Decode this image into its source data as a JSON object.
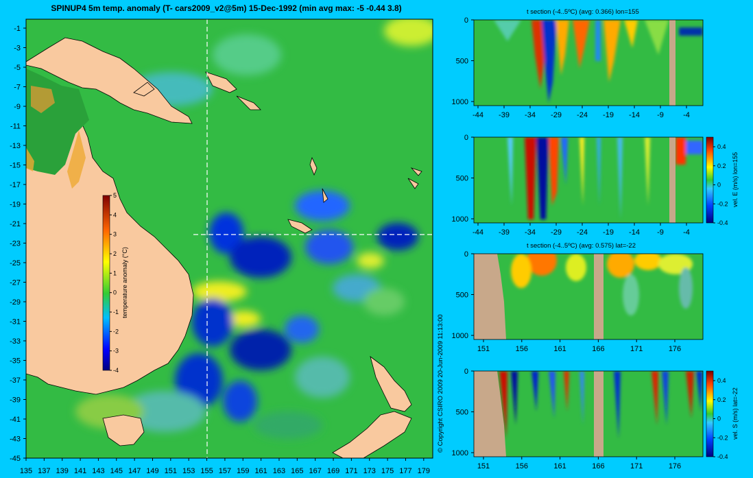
{
  "map": {
    "title": "SPINUP4 5m temp. anomaly (T- cars2009_v2@5m) 15-Dec-1992 (min avg max: -5 -0.44 3.8)",
    "x_ticks": [
      "135",
      "137",
      "139",
      "141",
      "143",
      "145",
      "147",
      "149",
      "151",
      "153",
      "155",
      "157",
      "159",
      "161",
      "163",
      "165",
      "167",
      "169",
      "171",
      "173",
      "175",
      "177",
      "179"
    ],
    "y_ticks": [
      "-1",
      "-3",
      "-5",
      "-7",
      "-9",
      "-11",
      "-13",
      "-15",
      "-17",
      "-19",
      "-21",
      "-23",
      "-25",
      "-27",
      "-29",
      "-31",
      "-33",
      "-35",
      "-37",
      "-39",
      "-41",
      "-43",
      "-45"
    ],
    "colorbar_label": "temperature anomaly (°C)",
    "colorbar_ticks": [
      "5",
      "4",
      "3",
      "2",
      "1",
      "0",
      "-1",
      "-2",
      "-3",
      "-4"
    ],
    "section_lon_line": 155,
    "section_lat_line": -22,
    "colors": {
      "land": "#f9c99f",
      "ocean_mean": "#33bb33",
      "background": "#00ccff"
    }
  },
  "copyright": "© Copyright CSIRO 2009   20-Jun-2009 11:13:00",
  "panels": [
    {
      "title": "t section (-4..5ºC) (avg: 0.366) lon=155",
      "x_ticks": [
        "-44",
        "-39",
        "-34",
        "-29",
        "-24",
        "-19",
        "-14",
        "-9",
        "-4"
      ],
      "y_ticks": [
        "0",
        "500",
        "1000"
      ],
      "colorbar": null
    },
    {
      "title": "",
      "x_ticks": [
        "-44",
        "-39",
        "-34",
        "-29",
        "-24",
        "-19",
        "-14",
        "-9",
        "-4"
      ],
      "y_ticks": [
        "0",
        "500",
        "1000"
      ],
      "colorbar": {
        "label": "vel. E (m/s) lon=155",
        "ticks": [
          "0.4",
          "0.2",
          "0",
          "-0.2",
          "-0.4"
        ]
      }
    },
    {
      "title": "t section (-4..5ºC) (avg: 0.575) lat=-22",
      "x_ticks": [
        "151",
        "156",
        "161",
        "166",
        "171",
        "176"
      ],
      "y_ticks": [
        "0",
        "500",
        "1000"
      ],
      "colorbar": null
    },
    {
      "title": "",
      "x_ticks": [
        "151",
        "156",
        "161",
        "166",
        "171",
        "176"
      ],
      "y_ticks": [
        "0",
        "500",
        "1000"
      ],
      "colorbar": {
        "label": "vel. S (m/s) lat=-22",
        "ticks": [
          "0.4",
          "0.2",
          "0",
          "-0.2",
          "-0.4"
        ]
      }
    }
  ],
  "chart_data": [
    {
      "type": "heatmap",
      "title": "SPINUP4 5m temp. anomaly (T- cars2009_v2@5m) 15-Dec-1992 (min avg max: -5 -0.44 3.8)",
      "xlabel": "",
      "ylabel": "",
      "xlim": [
        135,
        180
      ],
      "ylim": [
        -45,
        0
      ],
      "colorbar": {
        "label": "temperature anomaly (°C)",
        "range": [
          -4,
          5
        ]
      },
      "stats": {
        "min": -5,
        "avg": -0.44,
        "max": 3.8
      }
    },
    {
      "type": "heatmap",
      "title": "t section (-4..5ºC) (avg: 0.366) lon=155",
      "xlim": [
        -45,
        0
      ],
      "ylim": [
        1000,
        0
      ],
      "avg": 0.366
    },
    {
      "type": "heatmap",
      "title": "vel. E (m/s) lon=155",
      "xlim": [
        -45,
        0
      ],
      "ylim": [
        1000,
        0
      ],
      "colorbar_range": [
        -0.4,
        0.4
      ]
    },
    {
      "type": "heatmap",
      "title": "t section (-4..5ºC) (avg: 0.575) lat=-22",
      "xlim": [
        150,
        180
      ],
      "ylim": [
        1000,
        0
      ],
      "avg": 0.575
    },
    {
      "type": "heatmap",
      "title": "vel. S (m/s) lat=-22",
      "xlim": [
        150,
        180
      ],
      "ylim": [
        1000,
        0
      ],
      "colorbar_range": [
        -0.4,
        0.4
      ]
    }
  ]
}
